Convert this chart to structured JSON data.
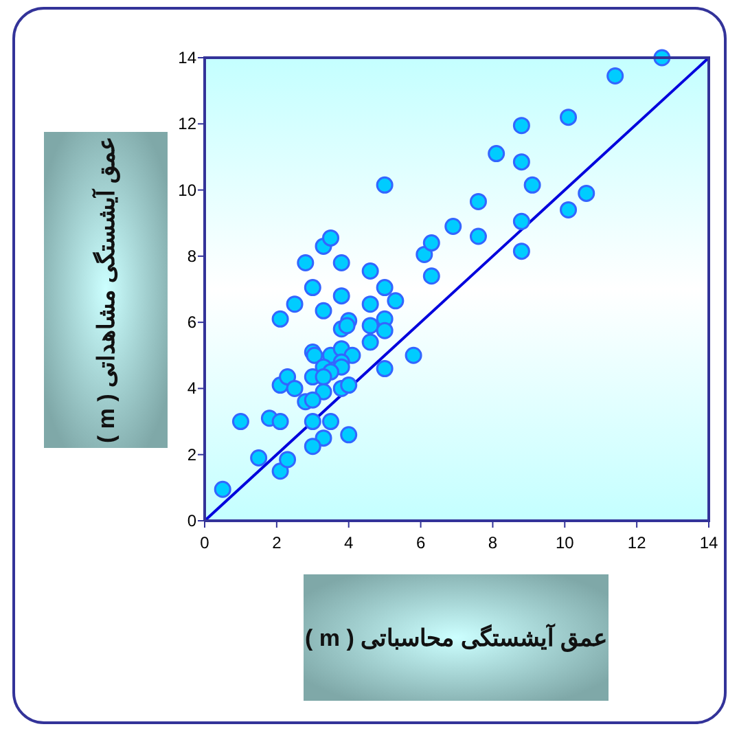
{
  "chart_data": {
    "type": "scatter",
    "xlabel": "عمق آیشستگی محاسباتی ( m )",
    "ylabel": "عمق آیشستگی مشاهداتی ( m )",
    "xlim": [
      0,
      14
    ],
    "ylim": [
      0,
      14
    ],
    "xticks": [
      0,
      2,
      4,
      6,
      8,
      10,
      12,
      14
    ],
    "yticks": [
      0,
      2,
      4,
      6,
      8,
      10,
      12,
      14
    ],
    "series": [
      {
        "type": "scatter",
        "marker": "circle",
        "color": "#00ccff",
        "x": [
          0.5,
          1.0,
          1.5,
          1.8,
          2.1,
          2.1,
          2.3,
          2.1,
          2.3,
          2.5,
          2.1,
          2.5,
          3.0,
          3.3,
          3.8,
          3.8,
          4.0,
          3.95,
          4.6,
          5.0,
          5.3,
          4.6,
          5.0,
          5.0,
          4.6,
          5.8,
          5.0,
          3.0,
          3.05,
          3.5,
          3.8,
          4.1,
          3.3,
          3.8,
          3.8,
          3.5,
          3.0,
          3.3,
          3.3,
          2.8,
          3.0,
          3.8,
          4.0,
          3.0,
          3.5,
          3.3,
          3.0,
          4.0,
          5.0,
          6.9,
          6.1,
          6.3,
          6.3,
          3.3,
          3.5,
          2.8,
          3.8,
          4.6,
          12.7,
          11.4,
          10.1,
          8.8,
          8.1,
          8.8,
          9.1,
          10.6,
          10.1,
          7.6,
          7.6,
          8.8,
          8.8
        ],
        "values": [
          0.95,
          3.0,
          1.9,
          3.1,
          3.0,
          1.5,
          1.85,
          4.1,
          4.35,
          4.0,
          6.1,
          6.55,
          7.05,
          6.35,
          6.8,
          5.8,
          6.05,
          5.9,
          6.55,
          7.05,
          6.65,
          5.9,
          6.1,
          5.75,
          5.4,
          5.0,
          4.6,
          5.1,
          5.0,
          5.0,
          5.2,
          5.0,
          4.65,
          4.8,
          4.65,
          4.5,
          4.35,
          4.35,
          3.9,
          3.6,
          3.65,
          4.0,
          4.1,
          3.0,
          3.0,
          2.5,
          2.25,
          2.6,
          10.15,
          8.9,
          8.05,
          8.4,
          7.4,
          8.3,
          8.55,
          7.8,
          7.8,
          7.55,
          14.0,
          13.45,
          12.2,
          11.95,
          11.1,
          10.85,
          10.15,
          9.9,
          9.4,
          9.65,
          8.6,
          9.05,
          8.15
        ]
      },
      {
        "type": "line",
        "color": "#0000dd",
        "x": [
          0,
          14
        ],
        "values": [
          0,
          14
        ]
      }
    ]
  }
}
